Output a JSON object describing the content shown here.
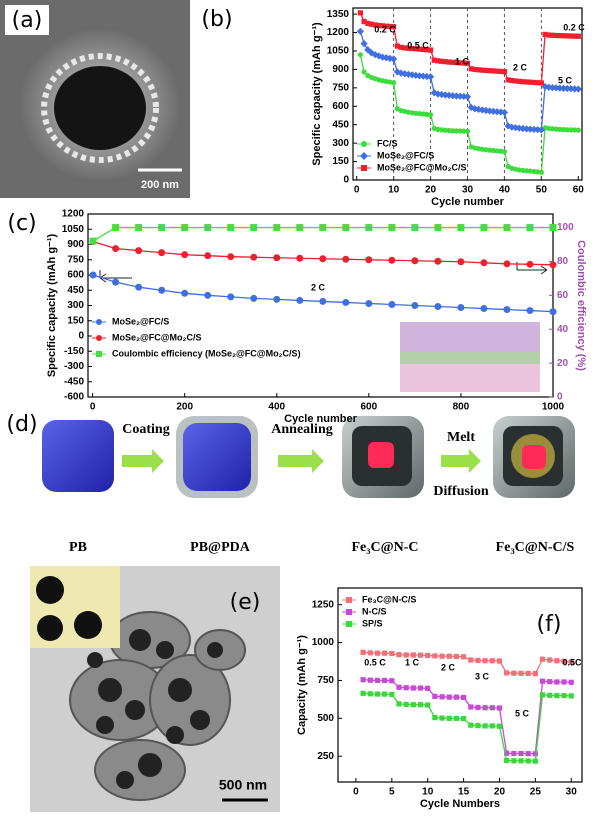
{
  "panels": [
    "(a)",
    "(b)",
    "(c)",
    "(d)",
    "(e)",
    "(f)"
  ],
  "image_a": {
    "scale_bar": "200 nm"
  },
  "image_e": {
    "scale_bar": "500 nm"
  },
  "diagram_d": {
    "steps": [
      "Coating",
      "Annealing",
      "Melt",
      "Diffusion"
    ],
    "items": [
      "PB",
      "PB@PDA",
      "Fe₃C@N-C",
      "Fe₃C@N-C/S"
    ]
  },
  "chart_data": [
    {
      "type": "line",
      "xlabel": "Cycle number",
      "ylabel": "Specific capacity (mAh g⁻¹)",
      "xlim": [
        -1,
        61
      ],
      "ylim": [
        0,
        1400
      ],
      "xticks": [
        0,
        10,
        20,
        30,
        40,
        50,
        60
      ],
      "yticks": [
        0,
        150,
        300,
        450,
        600,
        750,
        900,
        1050,
        1200,
        1350
      ],
      "xgrid": true,
      "legend": "lower left",
      "annotations": [
        "0.2 C",
        "0.5 C",
        "1 C",
        "2 C",
        "5 C",
        "0.2 C"
      ],
      "x": [
        1,
        2,
        3,
        4,
        5,
        6,
        7,
        8,
        9,
        10,
        11,
        12,
        13,
        14,
        15,
        16,
        17,
        18,
        19,
        20,
        21,
        22,
        23,
        24,
        25,
        26,
        27,
        28,
        29,
        30,
        31,
        32,
        33,
        34,
        35,
        36,
        37,
        38,
        39,
        40,
        41,
        42,
        43,
        44,
        45,
        46,
        47,
        48,
        49,
        50,
        51,
        52,
        53,
        54,
        55,
        56,
        57,
        58,
        59,
        60
      ],
      "series": [
        {
          "name": "FC/S",
          "color": "#3ddc3d",
          "marker": "circle",
          "values": [
            1020,
            880,
            850,
            835,
            825,
            815,
            808,
            802,
            797,
            792,
            580,
            565,
            558,
            552,
            547,
            543,
            540,
            537,
            534,
            531,
            420,
            412,
            408,
            405,
            403,
            401,
            400,
            399,
            398,
            397,
            270,
            260,
            255,
            250,
            246,
            243,
            240,
            237,
            234,
            231,
            110,
            95,
            88,
            82,
            78,
            75,
            72,
            69,
            66,
            63,
            425,
            420,
            417,
            414,
            412,
            410,
            409,
            408,
            407,
            406
          ]
        },
        {
          "name": "MoSe₂@FC/S",
          "color": "#3f6fe0",
          "marker": "diamond",
          "values": [
            1210,
            1110,
            1060,
            1035,
            1020,
            1010,
            1000,
            995,
            990,
            985,
            880,
            870,
            865,
            860,
            856,
            852,
            848,
            845,
            842,
            840,
            710,
            700,
            696,
            692,
            689,
            686,
            684,
            682,
            680,
            678,
            590,
            580,
            575,
            570,
            566,
            562,
            559,
            556,
            553,
            550,
            440,
            430,
            426,
            422,
            419,
            416,
            414,
            412,
            410,
            408,
            760,
            755,
            752,
            750,
            748,
            746,
            745,
            744,
            742,
            740
          ]
        },
        {
          "name": "MoSe₂@FC@Mo₂C/S",
          "color": "#ee2030",
          "marker": "square",
          "values": [
            1360,
            1290,
            1275,
            1268,
            1262,
            1258,
            1255,
            1252,
            1250,
            1248,
            1090,
            1080,
            1075,
            1072,
            1070,
            1068,
            1065,
            1063,
            1060,
            1058,
            975,
            970,
            966,
            963,
            960,
            958,
            956,
            954,
            952,
            950,
            905,
            900,
            897,
            894,
            892,
            890,
            888,
            886,
            884,
            882,
            815,
            810,
            806,
            803,
            800,
            798,
            796,
            794,
            792,
            790,
            1185,
            1180,
            1178,
            1176,
            1175,
            1174,
            1173,
            1172,
            1171,
            1170
          ]
        }
      ]
    },
    {
      "type": "line",
      "xlabel": "Cycle number",
      "ylabel": "Specific capacity (mAh g⁻¹)",
      "y2label": "Coulombic efficiency (%)",
      "xlim": [
        -10,
        1000
      ],
      "ylim": [
        -600,
        1200
      ],
      "y2lim": [
        0,
        108
      ],
      "xticks": [
        0,
        200,
        400,
        600,
        800,
        1000
      ],
      "yticks": [
        -600,
        -450,
        -300,
        -150,
        0,
        150,
        300,
        450,
        600,
        750,
        900,
        1050,
        1200
      ],
      "y2ticks": [
        0,
        20,
        40,
        60,
        80,
        100
      ],
      "legend": "lower left",
      "annotations": [
        "2 C"
      ],
      "x": [
        1,
        50,
        100,
        150,
        200,
        250,
        300,
        350,
        400,
        450,
        500,
        550,
        600,
        650,
        700,
        750,
        800,
        850,
        900,
        950,
        1000
      ],
      "series": [
        {
          "name": "MoSe₂@FC/S",
          "color": "#3f6fe0",
          "marker": "circle",
          "values": [
            600,
            530,
            480,
            450,
            420,
            400,
            385,
            370,
            360,
            350,
            340,
            330,
            320,
            310,
            300,
            290,
            280,
            270,
            260,
            250,
            240
          ]
        },
        {
          "name": "MoSe₂@FC@Mo₂C/S",
          "color": "#ee2030",
          "marker": "circle",
          "values": [
            930,
            860,
            840,
            820,
            800,
            790,
            780,
            775,
            770,
            765,
            760,
            755,
            750,
            745,
            740,
            735,
            730,
            720,
            710,
            705,
            700
          ]
        },
        {
          "name": "Coulombic efficiency (MoSe₂@FC@Mo₂C/S)",
          "color": "#44dd44",
          "marker": "square",
          "axis": "y2",
          "values": [
            92,
            100,
            100,
            100,
            100,
            100,
            100,
            100,
            100,
            100,
            100,
            100,
            100,
            100,
            100,
            100,
            100,
            100,
            100,
            100,
            100
          ]
        }
      ]
    },
    {
      "type": "line",
      "xlabel": "Cycle Numbers",
      "ylabel": "Capacity (mAh g⁻¹)",
      "xlim": [
        -2.5,
        31.5
      ],
      "ylim": [
        80,
        1360
      ],
      "xticks": [
        0,
        5,
        10,
        15,
        20,
        25,
        30
      ],
      "yticks": [
        250,
        500,
        750,
        1000,
        1250
      ],
      "legend": "upper left",
      "annotations": [
        "0.5 C",
        "1 C",
        "2 C",
        "3 C",
        "5 C",
        "0.5C"
      ],
      "x": [
        1,
        2,
        3,
        4,
        5,
        6,
        7,
        8,
        9,
        10,
        11,
        12,
        13,
        14,
        15,
        16,
        17,
        18,
        19,
        20,
        21,
        22,
        23,
        24,
        25,
        26,
        27,
        28,
        29,
        30
      ],
      "series": [
        {
          "name": "Fe₃C@N-C/S",
          "color": "#f07078",
          "marker": "square",
          "values": [
            935,
            932,
            930,
            930,
            928,
            920,
            918,
            918,
            917,
            915,
            912,
            910,
            910,
            908,
            906,
            885,
            882,
            880,
            880,
            878,
            800,
            798,
            797,
            796,
            795,
            890,
            885,
            880,
            876,
            872
          ]
        },
        {
          "name": "N-C/S",
          "color": "#c848d8",
          "marker": "square",
          "values": [
            755,
            752,
            750,
            750,
            748,
            705,
            702,
            700,
            700,
            698,
            645,
            642,
            640,
            640,
            638,
            575,
            572,
            570,
            570,
            568,
            270,
            268,
            268,
            267,
            266,
            745,
            742,
            740,
            740,
            738
          ]
        },
        {
          "name": "SP/S",
          "color": "#38d838",
          "marker": "square",
          "values": [
            665,
            662,
            660,
            660,
            658,
            595,
            592,
            590,
            590,
            588,
            505,
            502,
            500,
            500,
            498,
            455,
            452,
            450,
            450,
            448,
            222,
            220,
            220,
            219,
            218,
            655,
            652,
            650,
            650,
            648
          ]
        }
      ]
    }
  ]
}
